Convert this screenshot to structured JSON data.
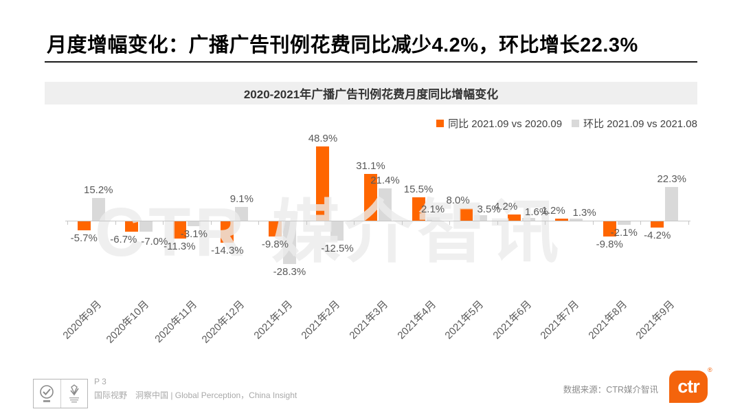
{
  "page": {
    "title": "月度增幅变化：广播广告刊例花费同比减少4.2%，环比增长22.3%",
    "watermark": "CTR 媒介智讯"
  },
  "colors": {
    "axis": "#C6C6C6",
    "data_label": "#595959",
    "banner_bg": "#EFEFEF",
    "logo_orange": "#F4640C"
  },
  "chart_data": {
    "type": "bar",
    "title": "2020-2021年广播广告刊例花费月度同比增幅变化",
    "categories": [
      "2020年9月",
      "2020年10月",
      "2020年11月",
      "2020年12月",
      "2021年1月",
      "2021年2月",
      "2021年3月",
      "2021年4月",
      "2021年5月",
      "2021年6月",
      "2021年7月",
      "2021年8月",
      "2021年9月"
    ],
    "series": [
      {
        "name": "同比 2021.09 vs 2020.09",
        "color": "#FF6600",
        "values": [
          -5.7,
          -6.7,
          -11.3,
          -14.3,
          -9.8,
          48.9,
          31.1,
          15.5,
          8.0,
          4.2,
          1.2,
          -9.8,
          -4.2
        ]
      },
      {
        "name": "环比 2021.09 vs 2021.08",
        "color": "#D9D9D9",
        "values": [
          15.2,
          -7.0,
          -3.1,
          9.1,
          -28.3,
          -12.5,
          21.4,
          2.1,
          3.5,
          1.6,
          1.3,
          -2.1,
          22.3
        ]
      }
    ],
    "value_suffix": "%",
    "value_decimals": 1,
    "ylim": [
      -30,
      55
    ],
    "grid": false,
    "legend_position": "top-right",
    "xlabel": "",
    "ylabel": ""
  },
  "footer": {
    "page_number": "P 3",
    "tagline": "国际视野　洞察中国 | Global Perception，China Insight",
    "source": "数据来源：CTR媒介智讯",
    "logo_text": "ctr",
    "registered_mark": "®",
    "badge_icons": [
      "sgs-certification-icon",
      "quality-certification-icon"
    ]
  }
}
